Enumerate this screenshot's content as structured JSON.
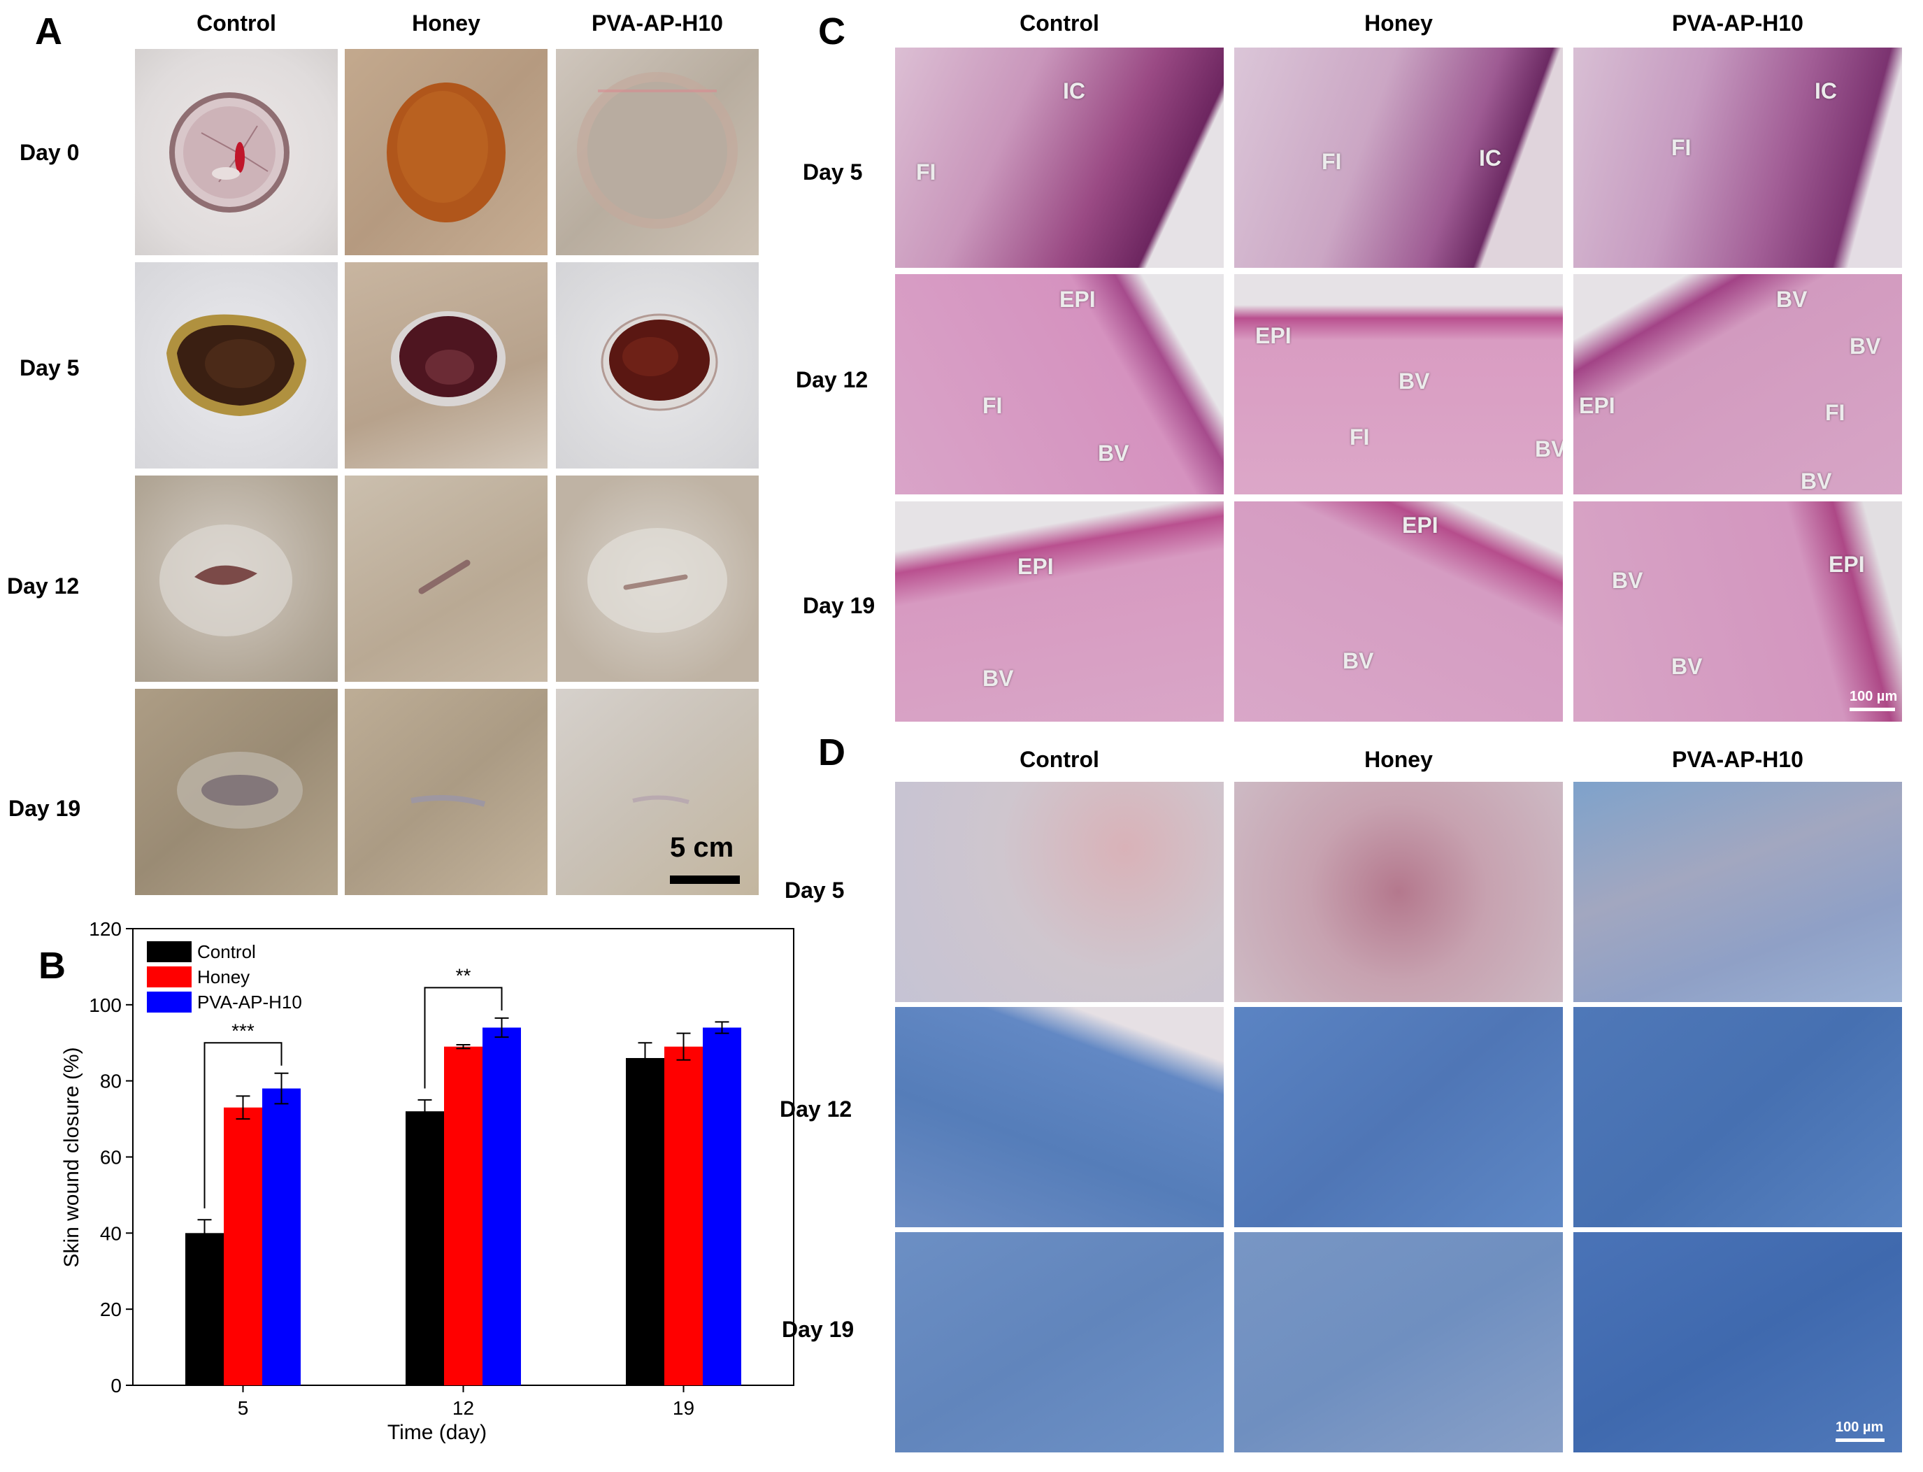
{
  "panels": {
    "a": "A",
    "b": "B",
    "c": "C",
    "d": "D"
  },
  "groups": [
    "Control",
    "Honey",
    "PVA-AP-H10"
  ],
  "panel_a": {
    "rows": [
      "Day 0",
      "Day 5",
      "Day 12",
      "Day 19"
    ],
    "scale_bar": "5 cm"
  },
  "panel_c": {
    "rows": [
      "Day 5",
      "Day 12",
      "Day 19"
    ],
    "scale_bar": "100 µm",
    "labels": [
      [
        "IC",
        "FI"
      ],
      [
        "FI",
        "IC"
      ],
      [
        "IC",
        "FI"
      ],
      [
        "EPI",
        "FI",
        "BV"
      ],
      [
        "EPI",
        "BV",
        "FI",
        "BV"
      ],
      [
        "BV",
        "BV",
        "EPI",
        "FI",
        "BV"
      ],
      [
        "EPI",
        "BV"
      ],
      [
        "EPI",
        "BV"
      ],
      [
        "BV",
        "EPI",
        "BV"
      ]
    ]
  },
  "panel_d": {
    "rows": [
      "Day 5",
      "Day 12",
      "Day 19"
    ],
    "scale_bar": "100 µm"
  },
  "chart_data": {
    "type": "bar",
    "xlabel": "Time (day)",
    "ylabel": "Skin wound closure (%)",
    "categories": [
      "5",
      "12",
      "19"
    ],
    "ylim": [
      0,
      120
    ],
    "yticks": [
      0,
      20,
      40,
      60,
      80,
      100,
      120
    ],
    "series": [
      {
        "name": "Control",
        "color": "#000000",
        "values": [
          40,
          72,
          86
        ],
        "errors": [
          3.5,
          3,
          4
        ]
      },
      {
        "name": "Honey",
        "color": "#ff0000",
        "values": [
          73,
          89,
          89
        ],
        "errors": [
          3,
          0.5,
          3.5
        ]
      },
      {
        "name": "PVA-AP-H10",
        "color": "#0000ff",
        "values": [
          78,
          94,
          94
        ],
        "errors": [
          4,
          2.5,
          1.5
        ]
      }
    ],
    "significance": [
      {
        "category": "5",
        "text": "***"
      },
      {
        "category": "12",
        "text": "**"
      }
    ],
    "legend": "top-left"
  }
}
